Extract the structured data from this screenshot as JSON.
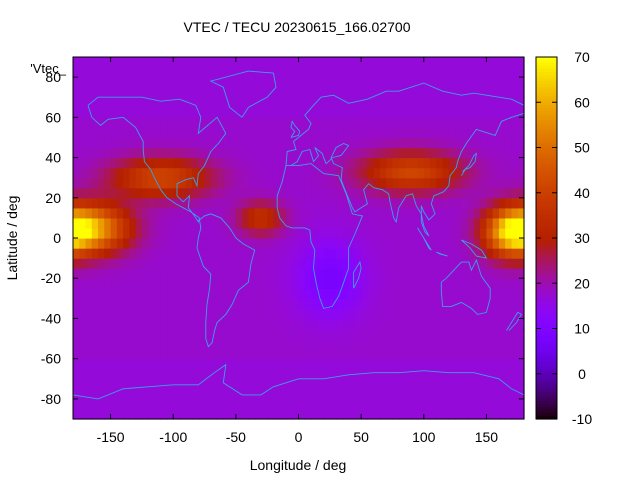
{
  "chart_data": {
    "type": "heatmap",
    "title": "VTEC / TECU 20230615_166.02700",
    "xlabel": "Longitude / deg",
    "ylabel": "Latitude / deg",
    "legend_label": "'Vtec_",
    "xlim": [
      -180,
      180
    ],
    "ylim": [
      -90,
      90
    ],
    "xticks": [
      -150,
      -100,
      -50,
      0,
      50,
      100,
      150
    ],
    "yticks": [
      -80,
      -60,
      -40,
      -20,
      0,
      20,
      40,
      60,
      80
    ],
    "colorbar": {
      "range": [
        -10,
        70
      ],
      "ticks": [
        70,
        60,
        50,
        40,
        30,
        20,
        10,
        0,
        -10
      ],
      "colormap": "gnuplot-pm3d",
      "position": "right"
    },
    "grid": false,
    "coastline_color": "#3c9fe8",
    "features": [
      {
        "label": "equatorial-maximum-pacific-east",
        "lon": -165,
        "lat": 5,
        "vtec": 58,
        "sx": 30,
        "sy": 12
      },
      {
        "label": "equatorial-maximum-pacific-west",
        "lon": 170,
        "lat": 3,
        "vtec": 58,
        "sx": 22,
        "sy": 12
      },
      {
        "label": "northern-crest-america",
        "lon": -110,
        "lat": 30,
        "vtec": 42,
        "sx": 40,
        "sy": 10
      },
      {
        "label": "northern-crest-asia",
        "lon": 90,
        "lat": 33,
        "vtec": 42,
        "sx": 40,
        "sy": 10
      },
      {
        "label": "atlantic-patch",
        "lon": -30,
        "lat": 10,
        "vtec": 36,
        "sx": 18,
        "sy": 8
      },
      {
        "label": "african-minimum",
        "lon": 25,
        "lat": -20,
        "vtec": 8,
        "sx": 25,
        "sy": 18
      }
    ],
    "background_vtec": 18,
    "polar_vtec": 17
  }
}
